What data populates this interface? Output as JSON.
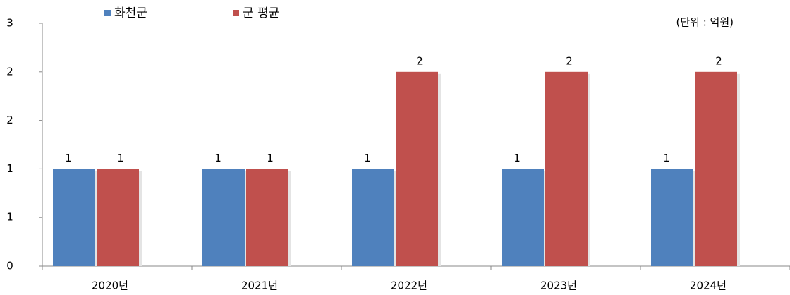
{
  "chart_data": {
    "type": "bar",
    "annotation": "(단위 : 억원)",
    "categories": [
      "2020년",
      "2021년",
      "2022년",
      "2023년",
      "2024년"
    ],
    "series": [
      {
        "name": "화천군",
        "color": "#4f81bd",
        "values": [
          1.2,
          1.2,
          1.2,
          1.2,
          1.2
        ],
        "value_labels": [
          "1",
          "1",
          "1",
          "1",
          "1"
        ]
      },
      {
        "name": "군 평균",
        "color": "#c0504d",
        "values": [
          1.2,
          1.2,
          2.4,
          2.4,
          2.4
        ],
        "value_labels": [
          "1",
          "1",
          "2",
          "2",
          "2"
        ]
      }
    ],
    "ylim": [
      0,
      3
    ],
    "yticks": [
      0,
      {
        "value": 0.6,
        "label": "1"
      },
      {
        "value": 1.2,
        "label": "1"
      },
      {
        "value": 1.8,
        "label": "2"
      },
      {
        "value": 2.4,
        "label": "2"
      },
      3
    ],
    "grid": false,
    "legend": "top"
  }
}
